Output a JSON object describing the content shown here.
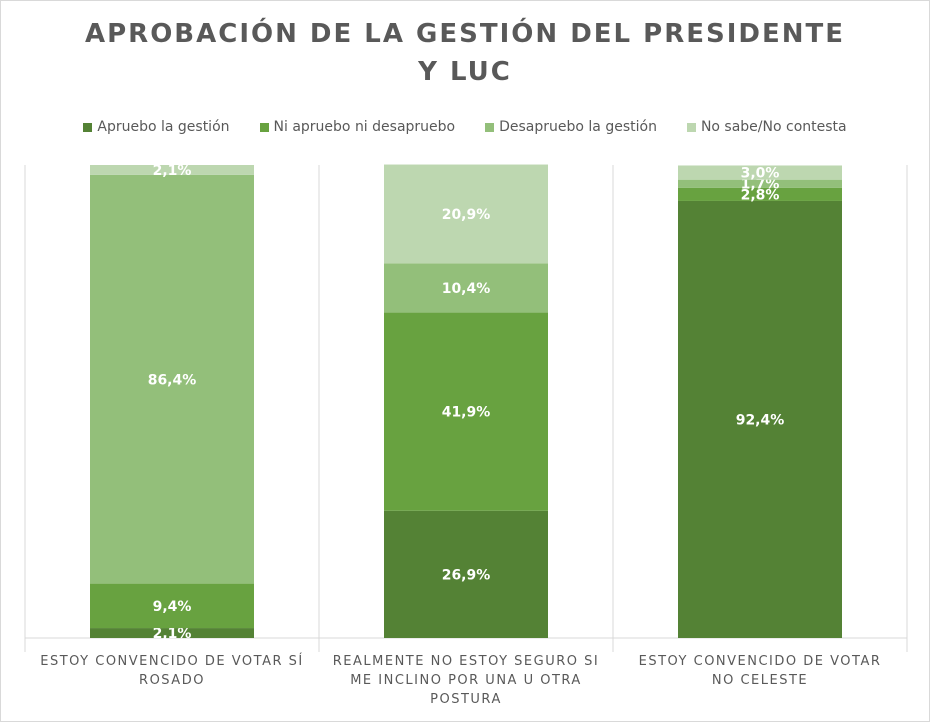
{
  "title_lines": [
    "APROBACIÓN DE LA GESTIÓN DEL PRESIDENTE",
    "Y LUC"
  ],
  "chart_data": {
    "type": "bar",
    "stacked": true,
    "percent_scale": true,
    "ylim": [
      0,
      100
    ],
    "categories": [
      "ESTOY CONVENCIDO DE VOTAR SÍ ROSADO",
      "REALMENTE NO ESTOY SEGURO SI ME INCLINO POR UNA U OTRA POSTURA",
      "ESTOY CONVENCIDO DE VOTAR NO CELESTE"
    ],
    "category_lines": [
      [
        "ESTOY CONVENCIDO DE VOTAR SÍ",
        "ROSADO"
      ],
      [
        "REALMENTE NO ESTOY SEGURO SI",
        "ME INCLINO POR UNA U OTRA",
        "POSTURA"
      ],
      [
        "ESTOY CONVENCIDO DE VOTAR",
        "NO CELESTE"
      ]
    ],
    "series": [
      {
        "name": "Apruebo la gestión",
        "color": "#548235",
        "values": [
          2.1,
          26.9,
          92.4
        ],
        "labels": [
          "2,1%",
          "26,9%",
          "92,4%"
        ]
      },
      {
        "name": "Ni apruebo ni desapruebo",
        "color": "#68a240",
        "values": [
          9.4,
          41.9,
          2.8
        ],
        "labels": [
          "9,4%",
          "41,9%",
          "2,8%"
        ]
      },
      {
        "name": "Desapruebo la gestión",
        "color": "#93bf7a",
        "values": [
          86.4,
          10.4,
          1.7
        ],
        "labels": [
          "86,4%",
          "10,4%",
          "1,7%"
        ]
      },
      {
        "name": "No sabe/No contesta",
        "color": "#bdd7b0",
        "values": [
          2.1,
          20.9,
          3.0
        ],
        "labels": [
          "2,1%",
          "20,9%",
          "3,0%"
        ]
      }
    ],
    "legend_position": "top",
    "gridlines": "vertical separators",
    "colors": {
      "title": "#595959",
      "separator": "#d9d9d9",
      "label": "#ffffff"
    }
  }
}
